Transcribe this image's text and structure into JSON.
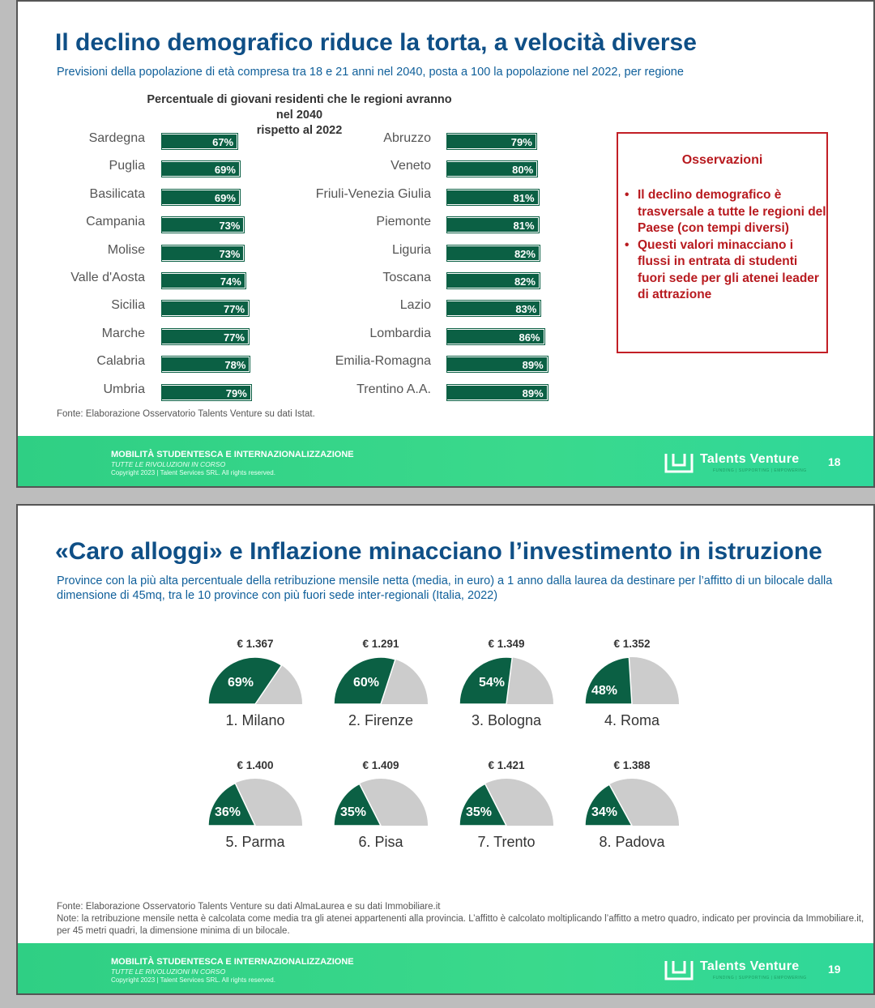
{
  "slide1": {
    "title": "Il declino demografico riduce la torta, a velocità diverse",
    "subtitle": "Previsioni della popolazione di età compresa tra 18 e 21 anni nel 2040, posta a 100 la popolazione nel 2022, per regione",
    "chart_title_line1": "Percentuale di giovani residenti che le regioni avranno nel 2040",
    "chart_title_line2": "rispetto al 2022",
    "observations": {
      "title": "Osservazioni",
      "items": [
        "Il declino demografico è trasversale a tutte le regioni del Paese (con tempi diversi)",
        "Questi valori minacciano i flussi in entrata di studenti fuori sede per gli atenei leader di attrazione"
      ]
    },
    "source": "Fonte: Elaborazione Osservatorio Talents Venture su dati Istat.",
    "page_number": "18"
  },
  "slide2": {
    "title": "«Caro alloggi» e Inflazione minacciano l’investimento in istruzione",
    "subtitle": "Province con la più alta percentuale della retribuzione mensile netta (media, in euro) a 1 anno dalla laurea da destinare per l’affitto di un bilocale dalla dimensione di 45mq, tra le 10 province con più fuori sede inter-regionali (Italia, 2022)",
    "source": "Fonte: Elaborazione Osservatorio Talents Venture su dati AlmaLaurea e su dati Immobiliare.it",
    "note": "Note: la retribuzione mensile netta è calcolata come media tra gli atenei appartenenti alla provincia. L’affitto è calcolato moltiplicando l’affitto a metro quadro, indicato per provincia da Immobiliare.it, per 45 metri quadri, la dimensione minima di un bilocale.",
    "page_number": "19"
  },
  "footer": {
    "main": "MOBILITÀ STUDENTESCA E INTERNAZIONALIZZAZIONE",
    "tagline": "TUTTE LE RIVOLUZIONI IN CORSO",
    "copyright": "Copyright 2023 | Talent Services SRL. All rights reserved.",
    "brand": "Talents Venture",
    "brand_sub": "FUNDING | SUPPORTING | EMPOWERING"
  },
  "colors": {
    "title_blue": "#0f4f86",
    "bar_green": "#0b6044",
    "pie_gray": "#cccccc",
    "obs_red": "#b81a1f",
    "footer_green": "#2fcf84"
  },
  "chart_data": [
    {
      "type": "bar",
      "orientation": "horizontal",
      "categories": [
        "Sardegna",
        "Puglia",
        "Basilicata",
        "Campania",
        "Molise",
        "Valle d'Aosta",
        "Sicilia",
        "Marche",
        "Calabria",
        "Umbria"
      ],
      "values": [
        67,
        69,
        69,
        73,
        73,
        74,
        77,
        77,
        78,
        79
      ],
      "labels": [
        "67%",
        "69%",
        "69%",
        "73%",
        "73%",
        "74%",
        "77%",
        "77%",
        "78%",
        "79%"
      ]
    },
    {
      "type": "bar",
      "orientation": "horizontal",
      "categories": [
        "Abruzzo",
        "Veneto",
        "Friuli-Venezia Giulia",
        "Piemonte",
        "Liguria",
        "Toscana",
        "Lazio",
        "Lombardia",
        "Emilia-Romagna",
        "Trentino A.A."
      ],
      "values": [
        79,
        80,
        81,
        81,
        82,
        82,
        83,
        86,
        89,
        89
      ],
      "labels": [
        "79%",
        "80%",
        "81%",
        "81%",
        "82%",
        "82%",
        "83%",
        "86%",
        "89%",
        "89%"
      ]
    },
    {
      "type": "pie",
      "shape": "semicircle",
      "items": [
        {
          "label": "1. Milano",
          "price": "€ 1.367",
          "pct_label": "69%",
          "value": 69
        },
        {
          "label": "2. Firenze",
          "price": "€ 1.291",
          "pct_label": "60%",
          "value": 60
        },
        {
          "label": "3. Bologna",
          "price": "€ 1.349",
          "pct_label": "54%",
          "value": 54
        },
        {
          "label": "4. Roma",
          "price": "€ 1.352",
          "pct_label": "48%",
          "value": 48
        },
        {
          "label": "5. Parma",
          "price": "€ 1.400",
          "pct_label": "36%",
          "value": 36
        },
        {
          "label": "6. Pisa",
          "price": "€ 1.409",
          "pct_label": "35%",
          "value": 35
        },
        {
          "label": "7. Trento",
          "price": "€ 1.421",
          "pct_label": "35%",
          "value": 35
        },
        {
          "label": "8. Padova",
          "price": "€ 1.388",
          "pct_label": "34%",
          "value": 34
        }
      ]
    }
  ]
}
